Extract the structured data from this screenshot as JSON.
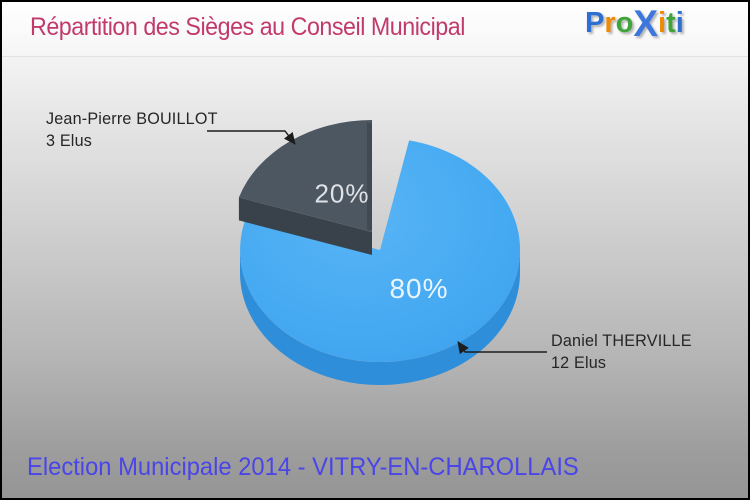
{
  "header": {
    "title": "Répartition des Sièges au Conseil Municipal",
    "logo_text": "Proxiti",
    "logo_letters": [
      {
        "ch": "P",
        "color": "#2e6fd2"
      },
      {
        "ch": "r",
        "color": "#f08a00"
      },
      {
        "ch": "o",
        "color": "#3fa43a"
      },
      {
        "ch": "X",
        "color": "#3d76dd",
        "big": true
      },
      {
        "ch": "i",
        "color": "#f08a00"
      },
      {
        "ch": "t",
        "color": "#3fa43a"
      },
      {
        "ch": "i",
        "color": "#2e6fd2"
      }
    ]
  },
  "chart_data": {
    "type": "pie",
    "style": "3d-exploded",
    "title": "Répartition des Sièges au Conseil Municipal",
    "legend_position": "callouts",
    "slices": [
      {
        "name": "Daniel THERVILLE",
        "seats_text": "12 Elus",
        "seats": 12,
        "value_pct": 80,
        "pct_label": "80%",
        "color": "#44a9f1",
        "side_color": "#2e8ed9",
        "exploded": false
      },
      {
        "name": "Jean-Pierre BOUILLOT",
        "seats_text": "3 Elus",
        "seats": 3,
        "value_pct": 20,
        "pct_label": "20%",
        "color": "#4d5761",
        "side_color": "#39424b",
        "exploded": true
      }
    ]
  },
  "footer": {
    "subtitle": "Election Municipale 2014 - VITRY-EN-CHAROLLAIS"
  }
}
